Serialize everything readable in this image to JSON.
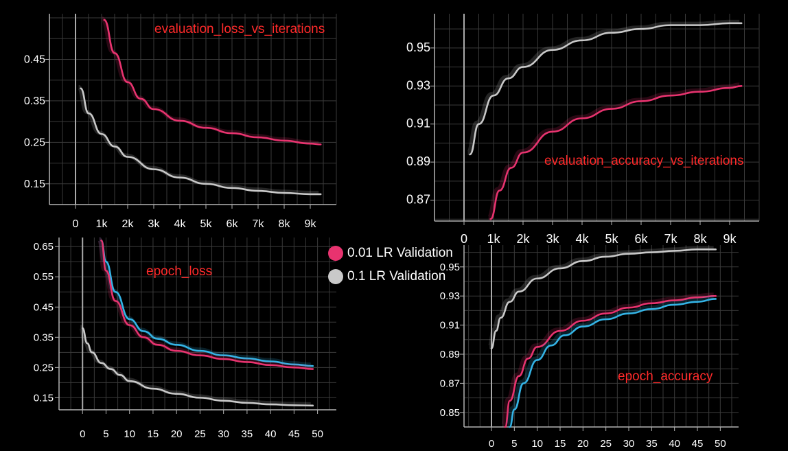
{
  "legend": {
    "items": [
      {
        "label": "0.01 LR Validation",
        "color": "#e8336f"
      },
      {
        "label": "0.1 LR Validation",
        "color": "#c9c9c9"
      }
    ]
  },
  "colors": {
    "pink": "#e8336f",
    "gray": "#c9c9c9",
    "blue": "#34b4e6",
    "title": "#ff2a2a",
    "grid": "#3a3a3a",
    "axis": "#b4b4b4"
  },
  "chart_data": [
    {
      "type": "line",
      "title": "evaluation_loss_vs_iterations",
      "xlabel": "",
      "ylabel": "",
      "xlim": [
        -1000,
        10000
      ],
      "ylim": [
        0.1,
        0.56
      ],
      "x_ticks": [
        0,
        1000,
        2000,
        3000,
        4000,
        5000,
        6000,
        7000,
        8000,
        9000
      ],
      "x_tick_labels": [
        "0",
        "1k",
        "2k",
        "3k",
        "4k",
        "5k",
        "6k",
        "7k",
        "8k",
        "9k"
      ],
      "y_ticks": [
        0.15,
        0.25,
        0.35,
        0.45
      ],
      "y_tick_labels": [
        "0.15",
        "0.25",
        "0.35",
        "0.45"
      ],
      "grid": true,
      "series": [
        {
          "color": "pink",
          "x": [
            1100,
            1500,
            2000,
            2500,
            3000,
            4000,
            5000,
            6000,
            7000,
            8000,
            9000,
            9400
          ],
          "y": [
            0.545,
            0.465,
            0.395,
            0.355,
            0.33,
            0.302,
            0.285,
            0.272,
            0.262,
            0.254,
            0.247,
            0.245
          ]
        },
        {
          "color": "gray",
          "x": [
            200,
            500,
            1000,
            1500,
            2000,
            3000,
            4000,
            5000,
            6000,
            7000,
            8000,
            9000,
            9400
          ],
          "y": [
            0.38,
            0.32,
            0.27,
            0.24,
            0.215,
            0.185,
            0.165,
            0.15,
            0.14,
            0.133,
            0.128,
            0.125,
            0.125
          ]
        }
      ]
    },
    {
      "type": "line",
      "title": "evaluation_accuracy_vs_iterations",
      "xlabel": "",
      "ylabel": "",
      "xlim": [
        -1000,
        10000
      ],
      "ylim": [
        0.859,
        0.968
      ],
      "x_ticks": [
        0,
        1000,
        2000,
        3000,
        4000,
        5000,
        6000,
        7000,
        8000,
        9000
      ],
      "x_tick_labels": [
        "0",
        "1k",
        "2k",
        "3k",
        "4k",
        "5k",
        "6k",
        "7k",
        "8k",
        "9k"
      ],
      "y_ticks": [
        0.87,
        0.89,
        0.91,
        0.93,
        0.95
      ],
      "y_tick_labels": [
        "0.87",
        "0.89",
        "0.91",
        "0.93",
        "0.95"
      ],
      "grid": true,
      "series": [
        {
          "color": "gray",
          "x": [
            200,
            500,
            1000,
            1500,
            2000,
            3000,
            4000,
            5000,
            6000,
            7000,
            8000,
            9000,
            9400
          ],
          "y": [
            0.894,
            0.91,
            0.925,
            0.934,
            0.94,
            0.949,
            0.954,
            0.958,
            0.96,
            0.962,
            0.962,
            0.963,
            0.963
          ]
        },
        {
          "color": "pink",
          "x": [
            900,
            1200,
            1600,
            2000,
            3000,
            4000,
            5000,
            6000,
            7000,
            8000,
            9000,
            9400
          ],
          "y": [
            0.86,
            0.875,
            0.887,
            0.895,
            0.906,
            0.913,
            0.918,
            0.922,
            0.925,
            0.927,
            0.929,
            0.93
          ]
        }
      ]
    },
    {
      "type": "line",
      "title": "epoch_loss",
      "xlabel": "",
      "ylabel": "",
      "xlim": [
        -5,
        54
      ],
      "ylim": [
        0.11,
        0.68
      ],
      "x_ticks": [
        0,
        5,
        10,
        15,
        20,
        25,
        30,
        35,
        40,
        45,
        50
      ],
      "x_tick_labels": [
        "0",
        "5",
        "10",
        "15",
        "20",
        "25",
        "30",
        "35",
        "40",
        "45",
        "50"
      ],
      "y_ticks": [
        0.15,
        0.25,
        0.35,
        0.45,
        0.55,
        0.65
      ],
      "y_tick_labels": [
        "0.15",
        "0.25",
        "0.35",
        "0.45",
        "0.55",
        "0.65"
      ],
      "grid": true,
      "series": [
        {
          "color": "blue",
          "x": [
            4,
            5,
            7,
            10,
            13,
            16,
            20,
            25,
            30,
            35,
            40,
            45,
            49
          ],
          "y": [
            0.67,
            0.6,
            0.5,
            0.41,
            0.37,
            0.345,
            0.325,
            0.305,
            0.29,
            0.28,
            0.27,
            0.26,
            0.255
          ]
        },
        {
          "color": "pink",
          "x": [
            4,
            5,
            7,
            10,
            13,
            16,
            20,
            25,
            30,
            35,
            40,
            45,
            49
          ],
          "y": [
            0.67,
            0.57,
            0.47,
            0.39,
            0.35,
            0.325,
            0.305,
            0.29,
            0.278,
            0.268,
            0.258,
            0.25,
            0.245
          ]
        },
        {
          "color": "gray",
          "x": [
            0,
            1,
            2,
            4,
            6,
            8,
            10,
            15,
            20,
            25,
            30,
            35,
            40,
            45,
            49
          ],
          "y": [
            0.38,
            0.33,
            0.3,
            0.265,
            0.245,
            0.225,
            0.205,
            0.18,
            0.163,
            0.15,
            0.14,
            0.133,
            0.128,
            0.125,
            0.124
          ]
        }
      ]
    },
    {
      "type": "line",
      "title": "epoch_accuracy",
      "xlabel": "",
      "ylabel": "",
      "xlim": [
        -6,
        54
      ],
      "ylim": [
        0.84,
        0.965
      ],
      "x_ticks": [
        0,
        5,
        10,
        15,
        20,
        25,
        30,
        35,
        40,
        45,
        50
      ],
      "x_tick_labels": [
        "0",
        "5",
        "10",
        "15",
        "20",
        "25",
        "30",
        "35",
        "40",
        "45",
        "50"
      ],
      "y_ticks": [
        0.85,
        0.87,
        0.89,
        0.91,
        0.93,
        0.95
      ],
      "y_tick_labels": [
        "0.85",
        "0.87",
        "0.89",
        "0.91",
        "0.93",
        "0.95"
      ],
      "grid": true,
      "series": [
        {
          "color": "gray",
          "x": [
            0,
            1,
            2,
            4,
            6,
            10,
            15,
            20,
            25,
            30,
            35,
            40,
            45,
            49
          ],
          "y": [
            0.894,
            0.906,
            0.915,
            0.926,
            0.933,
            0.942,
            0.949,
            0.954,
            0.957,
            0.959,
            0.96,
            0.961,
            0.962,
            0.962
          ]
        },
        {
          "color": "pink",
          "x": [
            3,
            4,
            6,
            8,
            10,
            15,
            20,
            25,
            30,
            35,
            40,
            45,
            49
          ],
          "y": [
            0.84,
            0.858,
            0.875,
            0.887,
            0.895,
            0.906,
            0.913,
            0.918,
            0.922,
            0.925,
            0.927,
            0.929,
            0.93
          ]
        },
        {
          "color": "blue",
          "x": [
            4,
            5,
            7,
            10,
            13,
            16,
            20,
            25,
            30,
            35,
            40,
            45,
            49
          ],
          "y": [
            0.84,
            0.852,
            0.87,
            0.886,
            0.896,
            0.903,
            0.909,
            0.914,
            0.918,
            0.921,
            0.924,
            0.926,
            0.928
          ]
        }
      ]
    }
  ]
}
